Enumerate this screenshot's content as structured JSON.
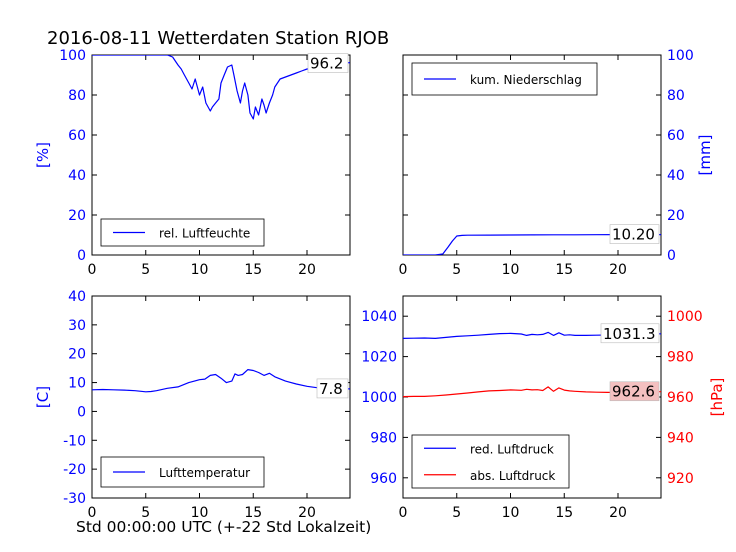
{
  "title": "2016-08-11 Wetterdaten Station RJOB",
  "xlabel": "Std 00:00:00 UTC (+-22 Std Lokalzeit)",
  "colors": {
    "blue": "#0000ff",
    "red": "#ff0000",
    "black": "#000000",
    "readout_bg": "#ffffff",
    "readout_red_bg": "#f4c0c0"
  },
  "chart_data": [
    {
      "id": "humidity",
      "type": "line",
      "xlim": [
        0,
        24
      ],
      "ylim": [
        0,
        100
      ],
      "xticks": [
        0,
        5,
        10,
        15,
        20
      ],
      "yticks": [
        0,
        20,
        40,
        60,
        80,
        100
      ],
      "ylabel": "[%]",
      "readout": "96.2",
      "legend_position": "lower-left",
      "series": [
        {
          "name": "rel. Luftfeuchte",
          "color": "#0000ff",
          "x": [
            0,
            1,
            2,
            3,
            4,
            5,
            6,
            7,
            7.5,
            8,
            8.3,
            8.6,
            9,
            9.3,
            9.6,
            10,
            10.3,
            10.6,
            11,
            11.2,
            11.5,
            11.8,
            12,
            12.3,
            12.6,
            13,
            13.2,
            13.5,
            13.8,
            14,
            14.2,
            14.5,
            14.7,
            15,
            15.2,
            15.5,
            15.8,
            16,
            16.2,
            16.5,
            16.8,
            17,
            17.5,
            18,
            18.5,
            19,
            19.5,
            20,
            20.5,
            21,
            21.5,
            22,
            22.5,
            23,
            23.5,
            24
          ],
          "y": [
            100,
            100,
            100,
            100,
            100,
            100,
            100,
            100,
            99,
            95,
            93,
            90,
            86,
            83,
            88,
            80,
            84,
            76,
            72,
            74,
            76,
            78,
            86,
            90,
            94,
            95,
            90,
            82,
            76,
            82,
            86,
            80,
            71,
            68,
            74,
            70,
            78,
            75,
            71,
            76,
            80,
            84,
            88,
            89,
            90,
            91,
            92,
            93,
            93,
            94,
            94,
            95,
            95,
            95,
            96,
            96.2
          ]
        }
      ]
    },
    {
      "id": "precipitation",
      "type": "line",
      "xlim": [
        0,
        24
      ],
      "ylim": [
        0,
        100
      ],
      "xticks": [
        0,
        5,
        10,
        15,
        20
      ],
      "yticks": [
        0,
        20,
        40,
        60,
        80,
        100
      ],
      "ylabel": "[mm]",
      "readout": "10.20",
      "legend_position": "upper-left",
      "series": [
        {
          "name": "kum. Niederschlag",
          "color": "#0000ff",
          "x": [
            0,
            2,
            3,
            3.7,
            4.2,
            4.6,
            5,
            5.5,
            6,
            8,
            10,
            12,
            14,
            16,
            18,
            20,
            22,
            24
          ],
          "y": [
            0,
            0,
            0,
            0.5,
            4,
            7,
            9.5,
            9.8,
            9.9,
            9.95,
            10,
            10.05,
            10.1,
            10.1,
            10.15,
            10.2,
            10.2,
            10.2
          ]
        }
      ]
    },
    {
      "id": "temperature",
      "type": "line",
      "xlim": [
        0,
        24
      ],
      "ylim": [
        -30,
        40
      ],
      "xticks": [
        0,
        5,
        10,
        15,
        20
      ],
      "yticks": [
        -30,
        -20,
        -10,
        0,
        10,
        20,
        30,
        40
      ],
      "ylabel": "[C]",
      "readout": "7.8",
      "legend_position": "lower-left",
      "series": [
        {
          "name": "Lufttemperatur",
          "color": "#0000ff",
          "x": [
            0,
            1,
            2,
            3,
            4,
            5,
            5.5,
            6,
            7,
            8,
            9,
            10,
            10.5,
            11,
            11.5,
            12,
            12.5,
            13,
            13.3,
            13.6,
            14,
            14.5,
            15,
            15.5,
            16,
            16.5,
            17,
            18,
            19,
            20,
            21,
            22,
            23,
            24
          ],
          "y": [
            7.5,
            7.6,
            7.5,
            7.4,
            7.2,
            6.8,
            6.9,
            7.2,
            8,
            8.5,
            10,
            11,
            11.2,
            12.5,
            12.8,
            11.5,
            10,
            10.5,
            13,
            12.5,
            12.8,
            14.5,
            14.2,
            13.5,
            12.5,
            13.2,
            12,
            10.5,
            9.5,
            8.7,
            8.2,
            8,
            7.8,
            7.8
          ]
        }
      ]
    },
    {
      "id": "pressure",
      "type": "line",
      "xlim": [
        0,
        24
      ],
      "ylim": [
        950,
        1050
      ],
      "ylim_right": [
        910,
        1010
      ],
      "xticks": [
        0,
        5,
        10,
        15,
        20
      ],
      "yticks": [
        960,
        980,
        1000,
        1020,
        1040
      ],
      "yticks_right": [
        920,
        940,
        960,
        980,
        1000
      ],
      "ylabel_right": "[hPa]",
      "readouts": [
        "1031.3",
        "962.6"
      ],
      "legend_position": "lower-left",
      "series": [
        {
          "name": "red. Luftdruck",
          "color": "#0000ff",
          "axis": "left",
          "x": [
            0,
            1,
            2,
            3,
            4,
            5,
            6,
            7,
            8,
            9,
            10,
            11,
            11.5,
            12,
            12.5,
            13,
            13.5,
            14,
            14.5,
            15,
            15.5,
            16,
            17,
            18,
            19,
            20,
            21,
            22,
            23,
            24
          ],
          "y": [
            1029,
            1029.1,
            1029.2,
            1029,
            1029.5,
            1030,
            1030.3,
            1030.6,
            1031,
            1031.4,
            1031.5,
            1031.2,
            1030.5,
            1031,
            1030.8,
            1031,
            1032,
            1030.5,
            1031.8,
            1030.6,
            1030.8,
            1030.5,
            1030.5,
            1030.6,
            1030.7,
            1030.9,
            1031,
            1031.1,
            1031.2,
            1031.3
          ]
        },
        {
          "name": "abs. Luftdruck",
          "color": "#ff0000",
          "axis": "right",
          "x": [
            0,
            1,
            2,
            3,
            4,
            5,
            6,
            7,
            8,
            9,
            10,
            11,
            11.5,
            12,
            12.5,
            13,
            13.5,
            14,
            14.5,
            15,
            15.5,
            16,
            17,
            18,
            19,
            20,
            21,
            22,
            23,
            24
          ],
          "y": [
            960.2,
            960.3,
            960.3,
            960.6,
            961,
            961.5,
            962,
            962.5,
            963,
            963.2,
            963.5,
            963.3,
            963.8,
            963.5,
            963.6,
            963.2,
            965,
            962.8,
            964.5,
            963.4,
            963,
            962.8,
            962.5,
            962.4,
            962.3,
            962.3,
            962.4,
            962.5,
            962.6,
            962.6
          ]
        }
      ]
    }
  ]
}
